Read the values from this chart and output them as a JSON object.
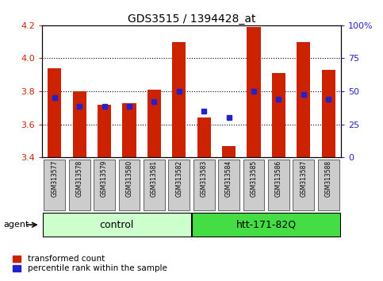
{
  "title": "GDS3515 / 1394428_at",
  "samples": [
    "GSM313577",
    "GSM313578",
    "GSM313579",
    "GSM313580",
    "GSM313581",
    "GSM313582",
    "GSM313583",
    "GSM313584",
    "GSM313585",
    "GSM313586",
    "GSM313587",
    "GSM313588"
  ],
  "red_values": [
    3.94,
    3.8,
    3.72,
    3.73,
    3.81,
    4.1,
    3.64,
    3.47,
    4.19,
    3.91,
    4.1,
    3.93
  ],
  "blue_values": [
    3.76,
    3.71,
    3.71,
    3.71,
    3.74,
    3.8,
    3.68,
    3.64,
    3.8,
    3.75,
    3.78,
    3.75
  ],
  "y_min": 3.4,
  "y_max": 4.2,
  "y_left_ticks": [
    3.4,
    3.6,
    3.8,
    4.0,
    4.2
  ],
  "y_right_ticks": [
    0,
    25,
    50,
    75,
    100
  ],
  "y_right_tick_labels": [
    "0",
    "25",
    "50",
    "75",
    "100%"
  ],
  "control_count": 6,
  "treatment_count": 6,
  "control_label": "control",
  "treatment_label": "htt-171-82Q",
  "agent_label": "agent",
  "legend_red": "transformed count",
  "legend_blue": "percentile rank within the sample",
  "bar_width": 0.55,
  "bar_color": "#cc2200",
  "blue_color": "#2222cc",
  "control_bg": "#ccffcc",
  "treatment_bg": "#44dd44",
  "sample_bg": "#cccccc",
  "left_label_color": "#cc2200",
  "right_label_color": "#2222cc",
  "grid_linestyle": "dotted",
  "grid_color": "black",
  "grid_linewidth": 0.8
}
